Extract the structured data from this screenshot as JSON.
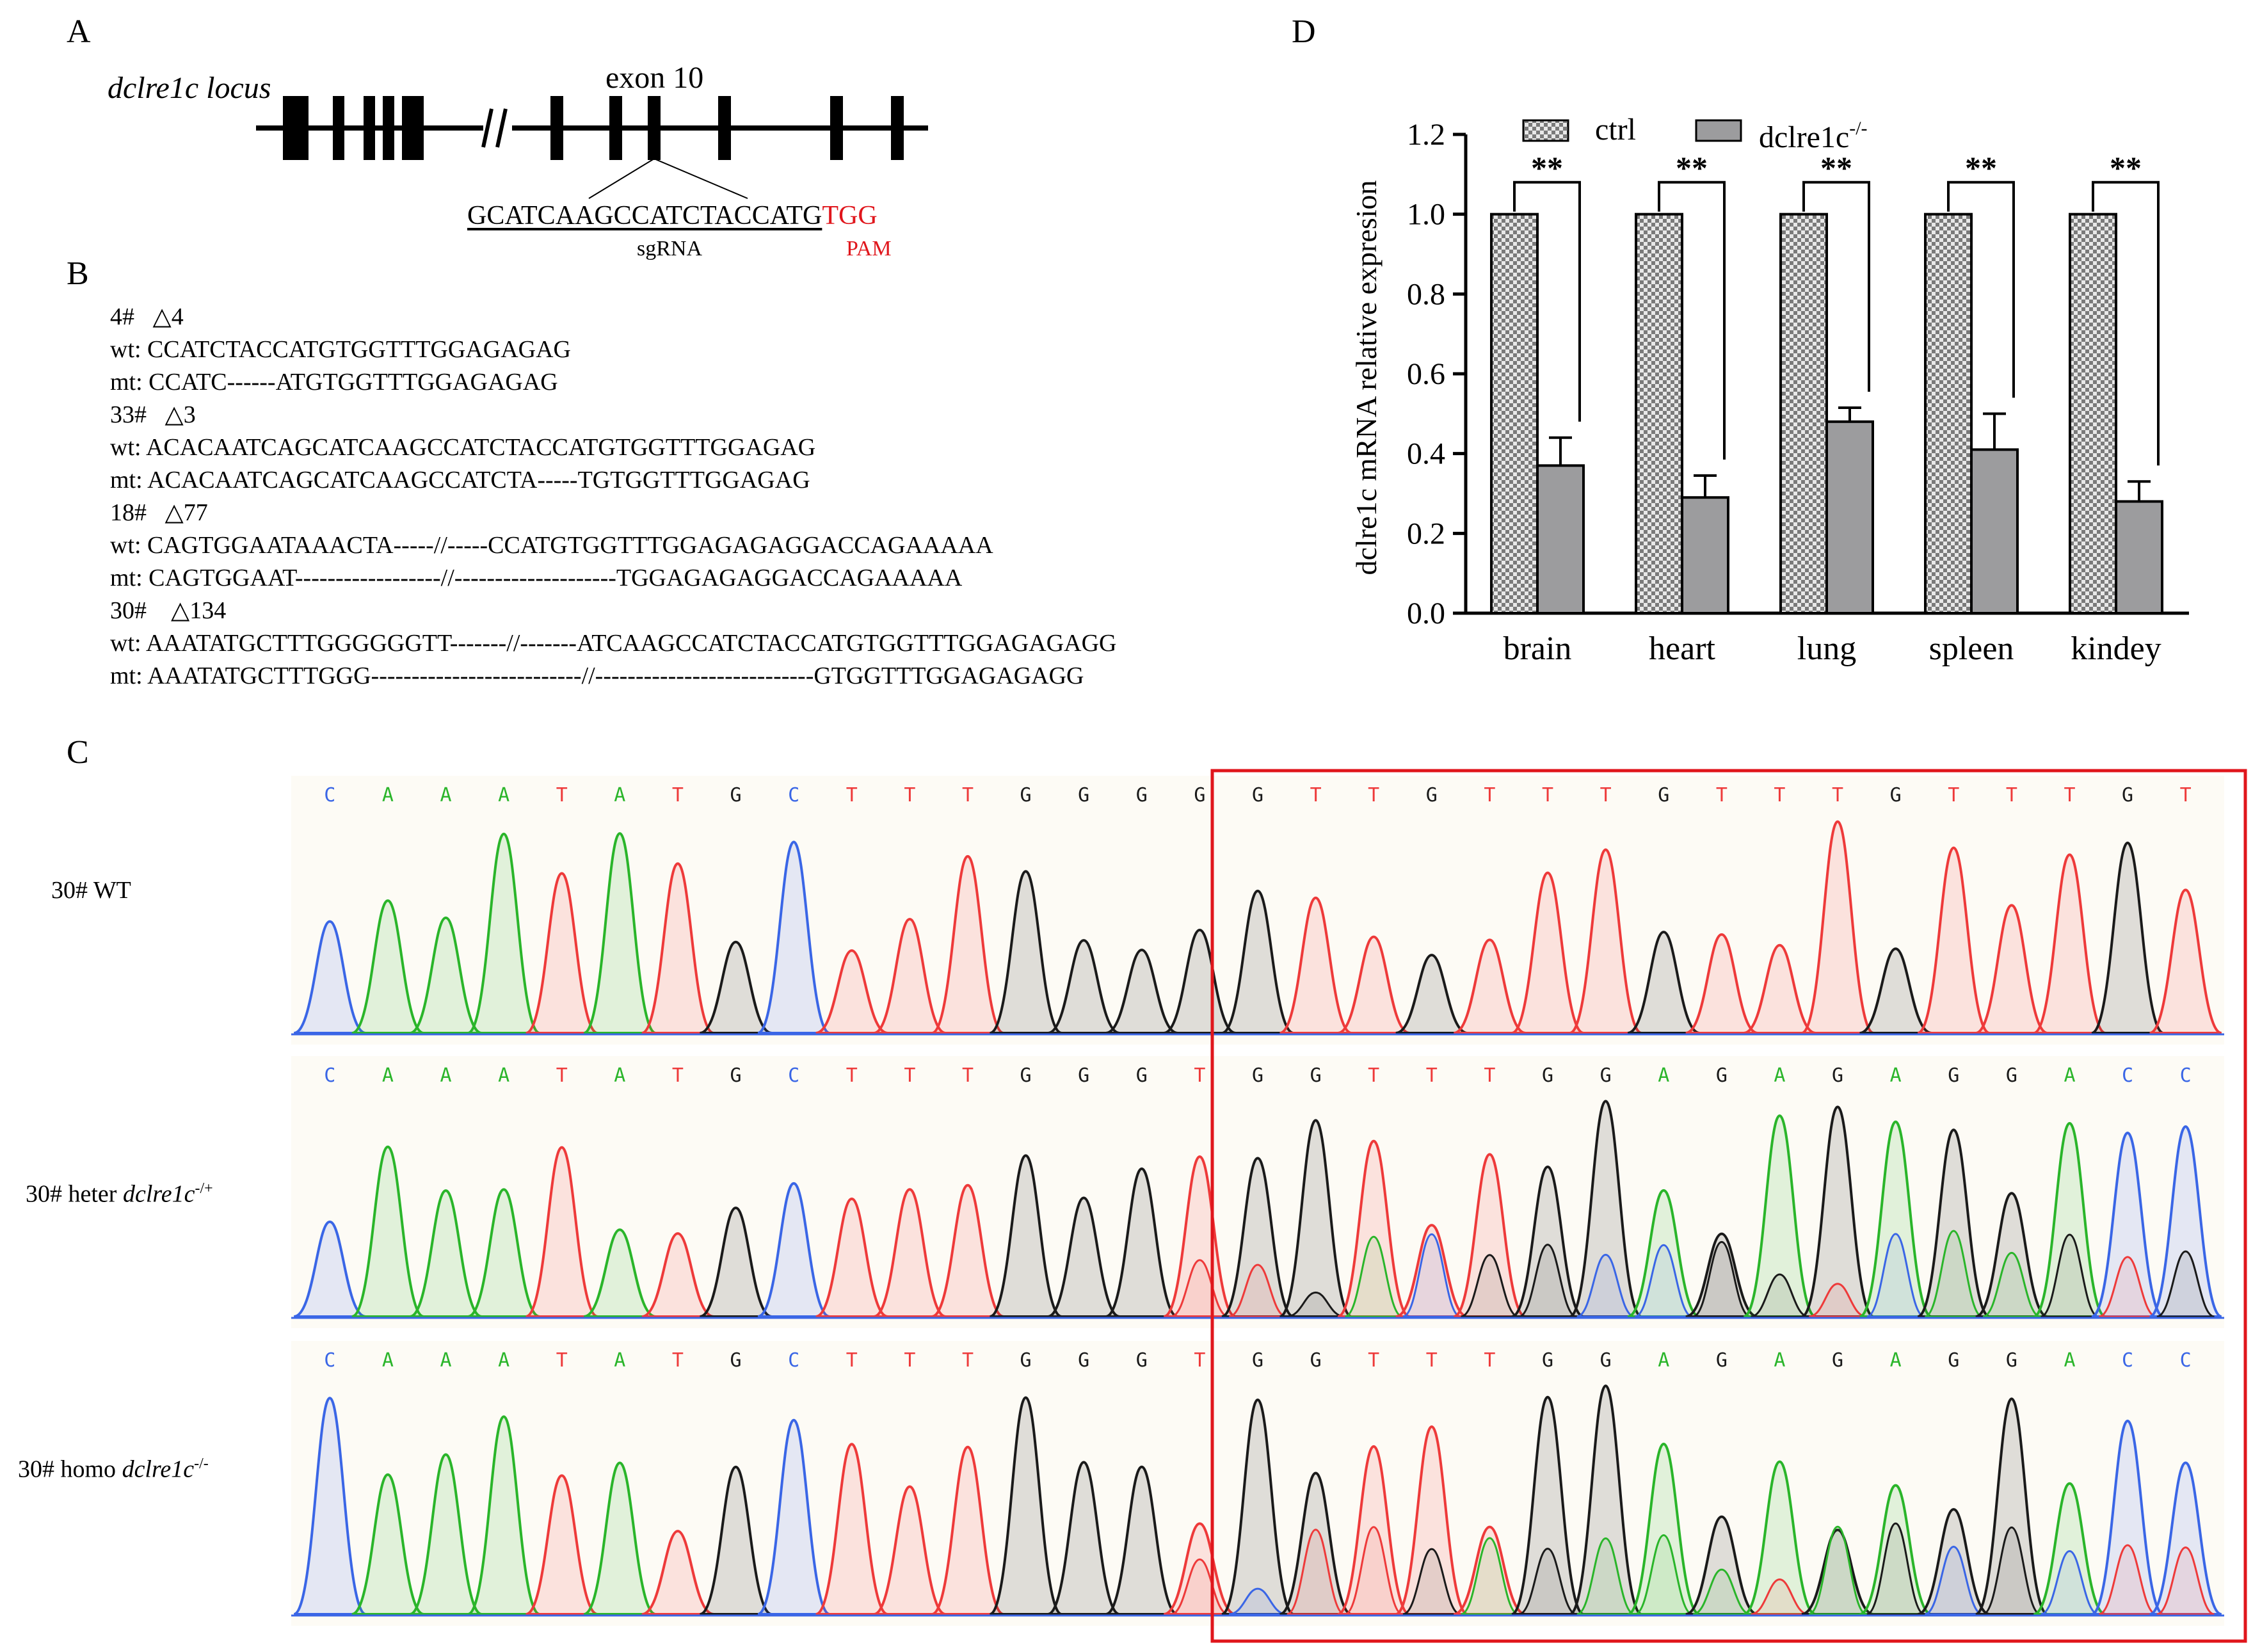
{
  "panels": {
    "a": "A",
    "b": "B",
    "c": "C",
    "d": "D"
  },
  "locus": {
    "gene_label": "dclre1c locus",
    "exon_label": "exon 10",
    "sgrna_seq": "GCATCAAGCCATCTACCATG",
    "pam_seq": "TGG",
    "sgrna_label": "sgRNA",
    "pam_label": "PAM"
  },
  "mutants": [
    {
      "id": "4#",
      "deletion": "△4",
      "wt": "wt: CCATCTACCATGTGGTTTGGAGAGAG",
      "mt": "mt: CCATC------ATGTGGTTTGGAGAGAG"
    },
    {
      "id": "33#",
      "deletion": "△3",
      "wt": "wt: ACACAATCAGCATCAAGCCATCTACCATGTGGTTTGGAGAG",
      "mt": "mt: ACACAATCAGCATCAAGCCATCTA-----TGTGGTTTGGAGAG"
    },
    {
      "id": "18#",
      "deletion": "△77",
      "wt": "wt: CAGTGGAATAAACTA-----//-----CCATGTGGTTTGGAGAGAGGACCAGAAAAA",
      "mt": "mt: CAGTGGAAT------------------//--------------------TGGAGAGAGGACCAGAAAAA"
    },
    {
      "id": "30#",
      "deletion": "△134",
      "wt": "wt: AAATATGCTTTGGGGGGTT-------//-------ATCAAGCCATCTACCATGTGGTTTGGAGAGAGG",
      "mt": "mt: AAATATGCTTTGGG--------------------------//---------------------------GTGGTTTGGAGAGAGG"
    }
  ],
  "chromatograms": [
    {
      "label": "30#  WT",
      "bases": [
        "C",
        "A",
        "A",
        "A",
        "T",
        "A",
        "T",
        "G",
        "C",
        "T",
        "T",
        "T",
        "G",
        "G",
        "G",
        "G",
        "G",
        "T",
        "T",
        "G",
        "T",
        "T",
        "T",
        "G",
        "T",
        "T",
        "T",
        "G",
        "T",
        "T",
        "T",
        "G",
        "T"
      ]
    },
    {
      "label": "30#  heter ",
      "gene": "dclre1c",
      "sup": "-/+",
      "bases": [
        "C",
        "A",
        "A",
        "A",
        "T",
        "A",
        "T",
        "G",
        "C",
        "T",
        "T",
        "T",
        "G",
        "G",
        "G",
        "T",
        "G",
        "G",
        "T",
        "T",
        "T",
        "G",
        "G",
        "A",
        "G",
        "A",
        "G",
        "A",
        "G",
        "G",
        "A",
        "C",
        "C"
      ]
    },
    {
      "label": "30#  homo ",
      "gene": "dclre1c",
      "sup": "-/-",
      "bases": [
        "C",
        "A",
        "A",
        "A",
        "T",
        "A",
        "T",
        "G",
        "C",
        "T",
        "T",
        "T",
        "G",
        "G",
        "G",
        "T",
        "G",
        "G",
        "T",
        "T",
        "T",
        "G",
        "G",
        "A",
        "G",
        "A",
        "G",
        "A",
        "G",
        "G",
        "A",
        "C",
        "C"
      ]
    }
  ],
  "colors": {
    "A": "#2ab52a",
    "C": "#3a66e6",
    "G": "#1a1a1a",
    "T": "#ee3a3a",
    "box": "#e0161c",
    "pam": "#e0161c",
    "ctrl_bar": "#d2d2d2",
    "ko_bar": "#9c9c9e"
  },
  "chart_data": {
    "type": "bar",
    "categories": [
      "brain",
      "heart",
      "lung",
      "spleen",
      "kindey"
    ],
    "series": [
      {
        "name": "ctrl",
        "values": [
          1.0,
          1.0,
          1.0,
          1.0,
          1.0
        ],
        "errors": [
          0,
          0,
          0,
          0,
          0
        ]
      },
      {
        "name": "dclre1c",
        "sup": "-/-",
        "values": [
          0.37,
          0.29,
          0.48,
          0.41,
          0.28
        ],
        "errors": [
          0.07,
          0.055,
          0.035,
          0.09,
          0.05
        ]
      }
    ],
    "significance": [
      "**",
      "**",
      "**",
      "**",
      "**"
    ],
    "ylabel": "dclre1c mRNA relative expresion",
    "xlabel": "",
    "ylim": [
      0,
      1.2
    ],
    "yticks": [
      "0.0",
      "0.2",
      "0.4",
      "0.6",
      "0.8",
      "1.0",
      "1.2"
    ],
    "legend_position": "top"
  }
}
